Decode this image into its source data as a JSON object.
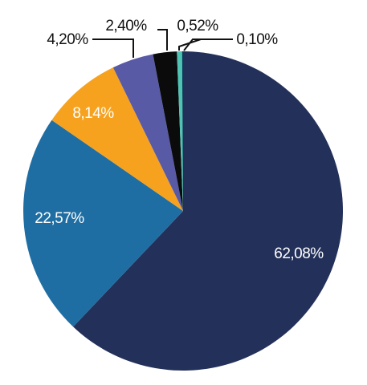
{
  "chart_data": {
    "type": "pie",
    "values": [
      62.08,
      22.57,
      8.14,
      4.2,
      2.4,
      0.52,
      0.1
    ],
    "labels": [
      "62,08%",
      "22,57%",
      "8,14%",
      "4,20%",
      "2,40%",
      "0,52%",
      "0,10%"
    ],
    "colors": [
      "#23305a",
      "#1f6ea3",
      "#f6a21e",
      "#585aa6",
      "#0b0b0b",
      "#4fc3b4",
      "#0b3a56"
    ],
    "start": "12 o'clock",
    "direction": "clockwise",
    "title": "",
    "legend": "none"
  }
}
